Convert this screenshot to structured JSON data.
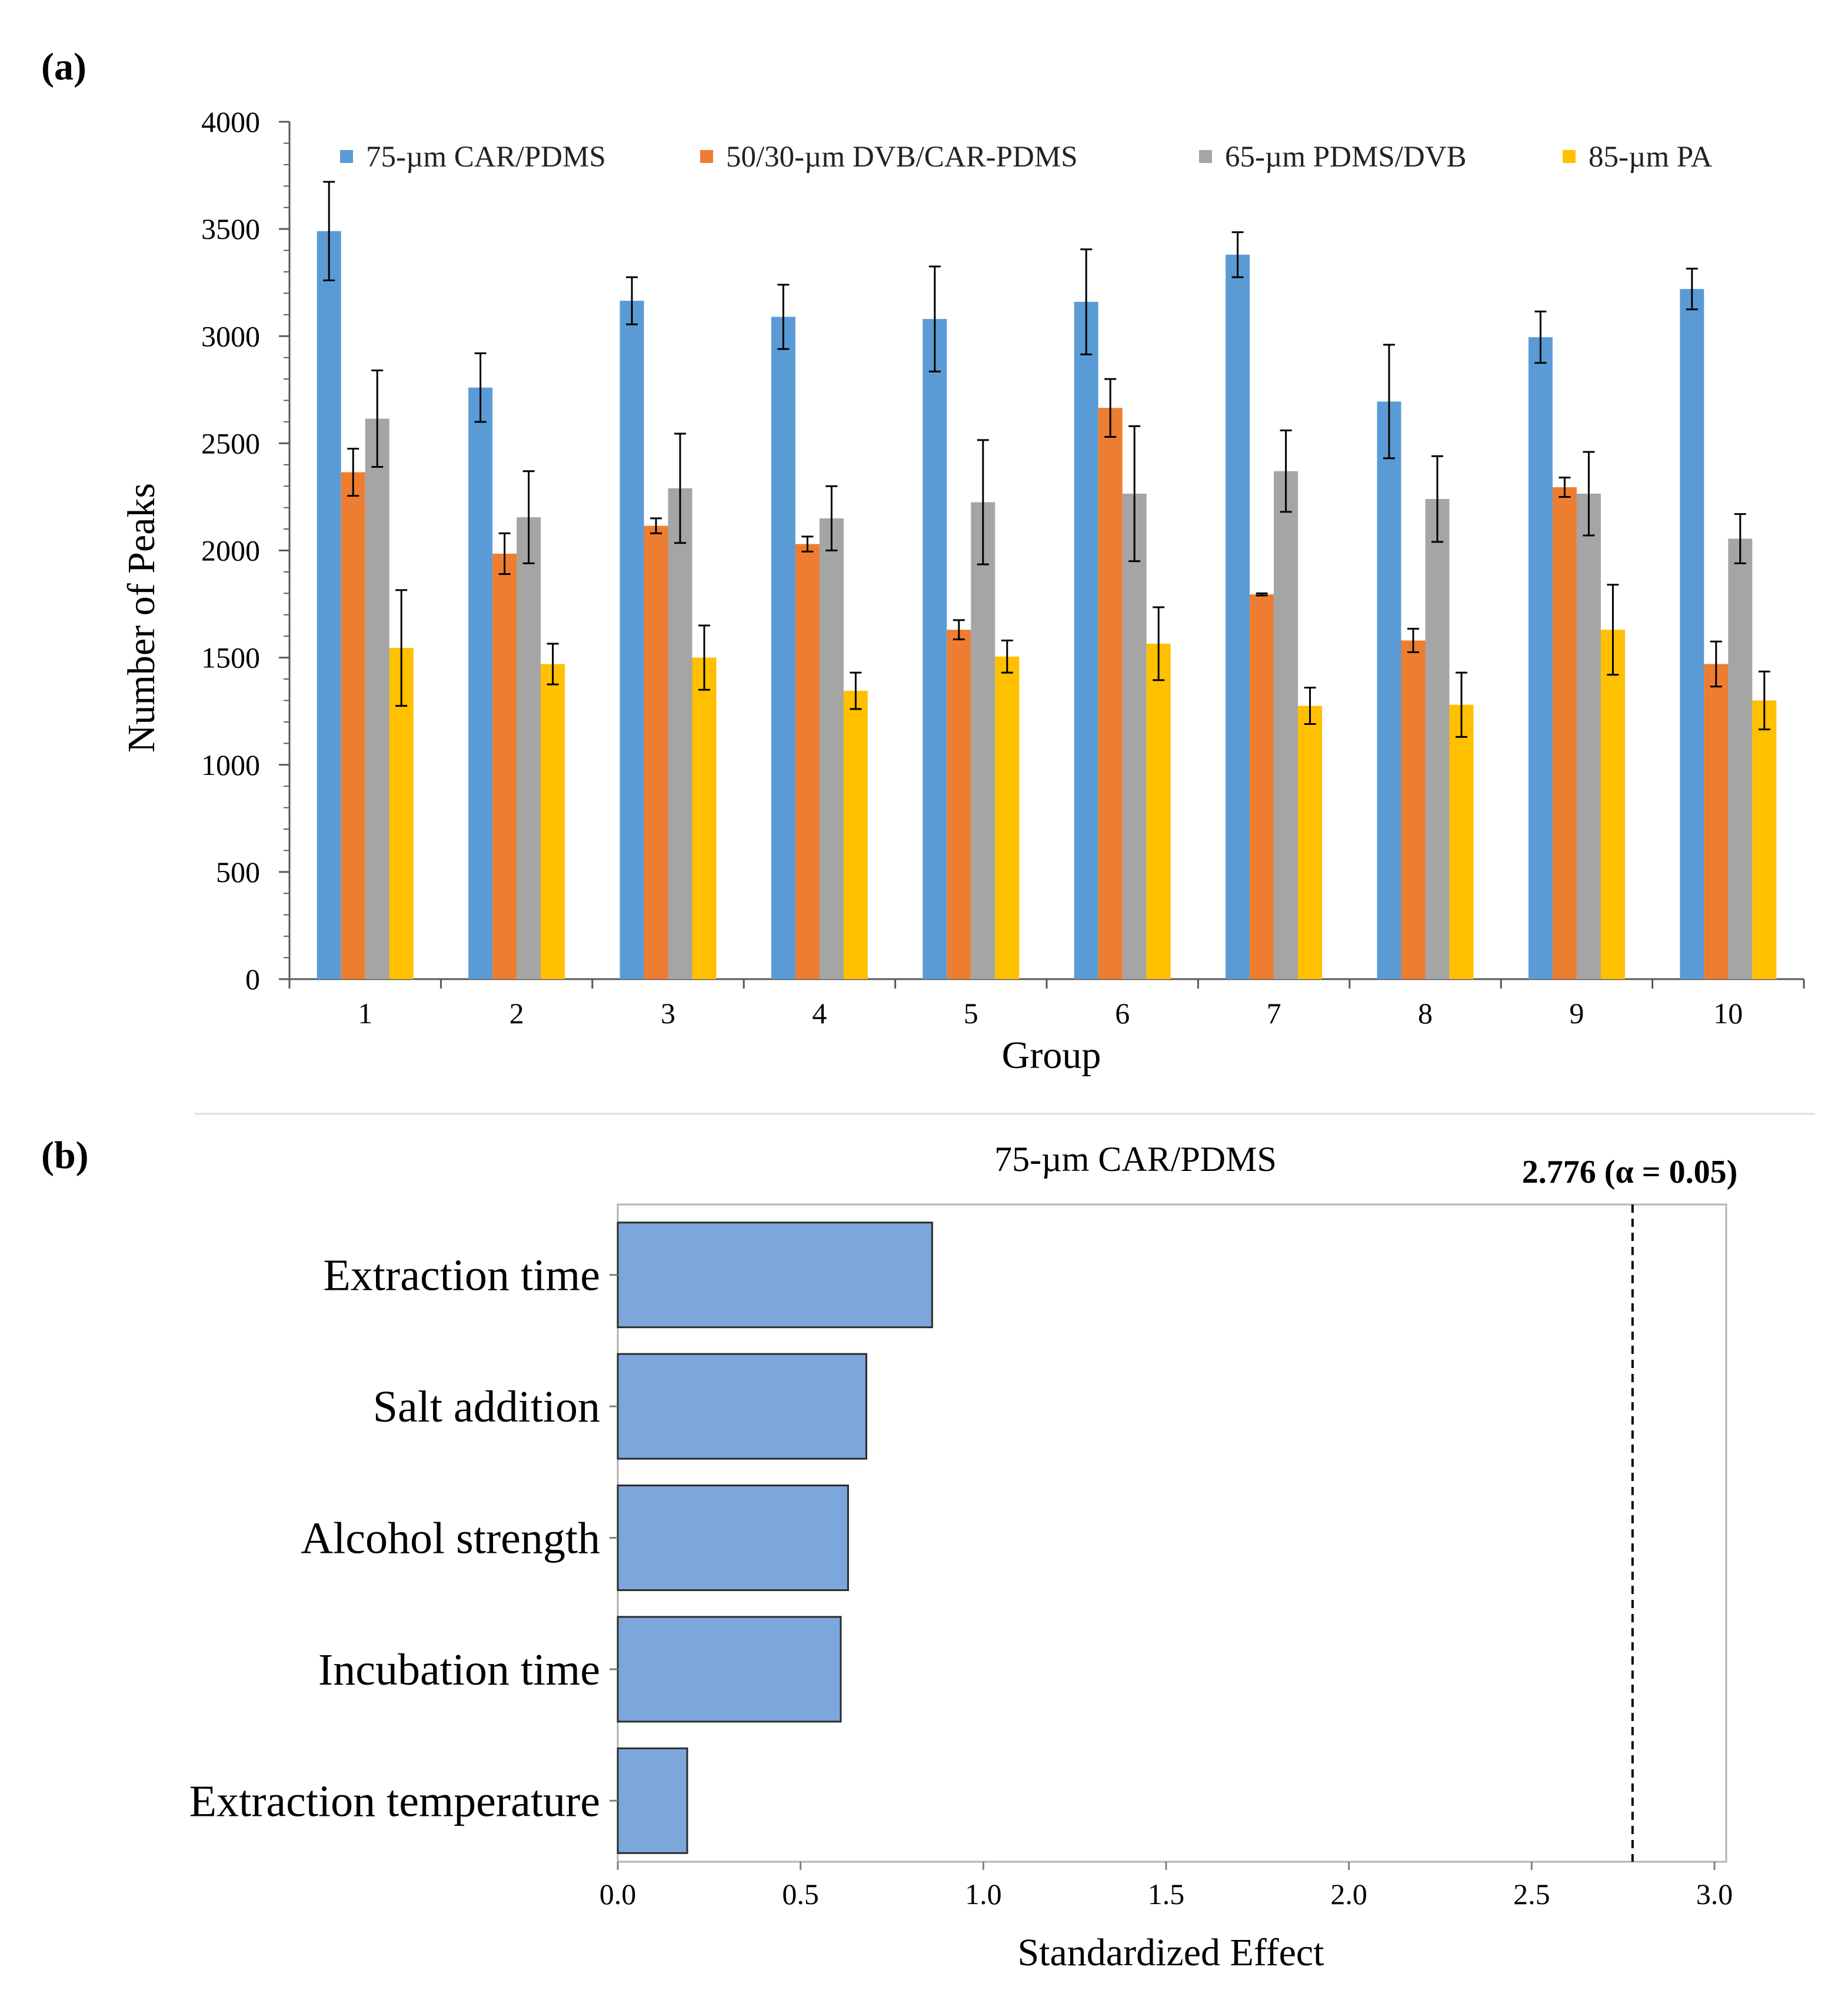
{
  "panels": {
    "a_label": "(a)",
    "b_label": "(b)"
  },
  "chart_data": [
    {
      "type": "bar",
      "title": "",
      "xlabel": "Group",
      "ylabel": "Number of Peaks",
      "ylim": [
        0,
        4000
      ],
      "yticks": [
        0,
        500,
        1000,
        1500,
        2000,
        2500,
        3000,
        3500,
        4000
      ],
      "categories": [
        "1",
        "2",
        "3",
        "4",
        "5",
        "6",
        "7",
        "8",
        "9",
        "10"
      ],
      "legend_position": "top",
      "series": [
        {
          "name": "75-µm CAR/PDMS",
          "color": "#5B9BD5",
          "values": [
            3490,
            2760,
            3165,
            3090,
            3080,
            3160,
            3380,
            2695,
            2995,
            3220
          ],
          "errors": [
            230,
            160,
            110,
            150,
            245,
            245,
            105,
            265,
            120,
            95
          ]
        },
        {
          "name": "50/30-µm DVB/CAR-PDMS",
          "color": "#ED7D31",
          "values": [
            2365,
            1985,
            2115,
            2030,
            1630,
            2665,
            1795,
            1580,
            2295,
            1470
          ],
          "errors": [
            110,
            95,
            35,
            35,
            45,
            135,
            5,
            55,
            45,
            105
          ]
        },
        {
          "name": "65-µm PDMS/DVB",
          "color": "#A5A5A5",
          "values": [
            2615,
            2155,
            2290,
            2150,
            2225,
            2265,
            2370,
            2240,
            2265,
            2055
          ],
          "errors": [
            225,
            215,
            255,
            150,
            290,
            315,
            190,
            200,
            195,
            115
          ]
        },
        {
          "name": "85-µm PA",
          "color": "#FFC000",
          "values": [
            1545,
            1470,
            1500,
            1345,
            1505,
            1565,
            1275,
            1280,
            1630,
            1300
          ],
          "errors": [
            270,
            95,
            150,
            85,
            75,
            170,
            85,
            150,
            210,
            135
          ]
        }
      ]
    },
    {
      "type": "bar",
      "orientation": "horizontal",
      "title": "75-µm CAR/PDMS",
      "xlabel": "Standardized Effect",
      "ylabel": "",
      "xlim": [
        0,
        3.0
      ],
      "xticks": [
        "0.0",
        "0.5",
        "1.0",
        "1.5",
        "2.0",
        "2.5",
        "3.0"
      ],
      "categories": [
        "Extraction time",
        "Salt addition",
        "Alcohol strength",
        "Incubation time",
        "Extraction temperature"
      ],
      "values": [
        0.86,
        0.68,
        0.63,
        0.61,
        0.19
      ],
      "bar_color": "#7BA7DB",
      "reference_line": {
        "value": 2.776,
        "label": "2.776 (α = 0.05)"
      }
    }
  ]
}
